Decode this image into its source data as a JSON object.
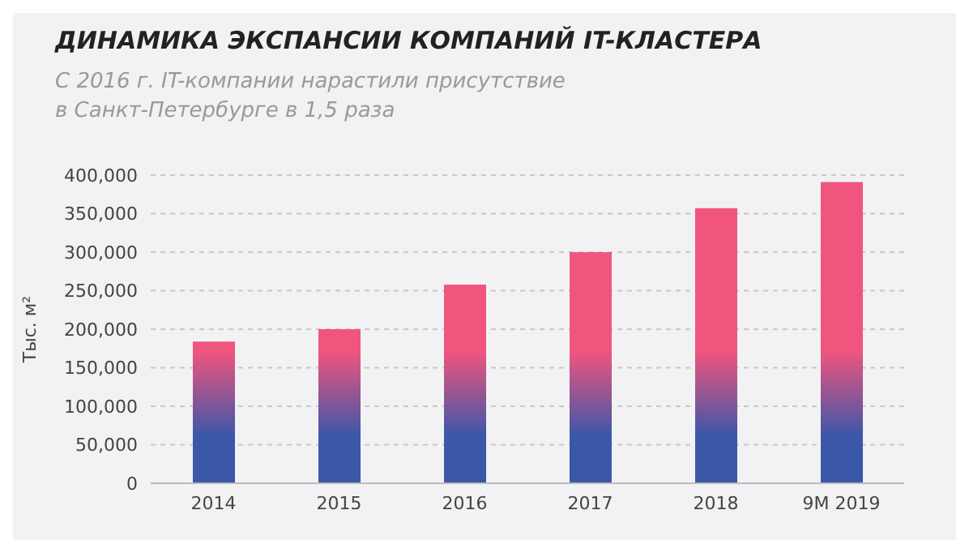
{
  "chart_data": {
    "type": "bar",
    "title": "ДИНАМИКА ЭКСПАНСИИ КОМПАНИЙ IT-КЛАСТЕРА",
    "subtitle": "С 2016 г. IT-компании нарастили присутствие в Санкт-Петербурге в 1,5 раза",
    "ylabel": "Тыс. м²",
    "categories": [
      "2014",
      "2015",
      "2016",
      "2017",
      "2018",
      "9M 2019"
    ],
    "values": [
      184000,
      200000,
      258000,
      300000,
      357000,
      391000
    ],
    "color": "#f0557e",
    "ylim": [
      0,
      400000
    ],
    "yticks": [
      0,
      {
        "value": 50000,
        "label": "50,000"
      },
      {
        "value": 100000,
        "label": "100,000"
      },
      {
        "value": 150000,
        "label": "150,000"
      },
      {
        "value": 200000,
        "label": "200,000"
      },
      {
        "value": 250000,
        "label": "250,000"
      },
      {
        "value": 300000,
        "label": "300,000"
      },
      {
        "value": 350000,
        "label": "350,000"
      },
      {
        "value": 400000,
        "label": "400,000"
      }
    ],
    "grid": "y"
  }
}
